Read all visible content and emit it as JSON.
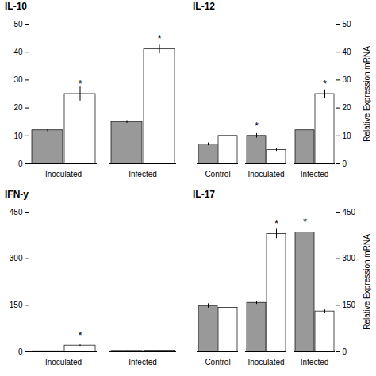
{
  "chart_data": [
    {
      "type": "bar",
      "title": "IL-10",
      "categories": [
        "Inoculated",
        "Infected"
      ],
      "series": [
        {
          "color": "#999999",
          "values": [
            12,
            15
          ],
          "errors": [
            0.5,
            0.5
          ]
        },
        {
          "color": "#ffffff",
          "values": [
            25,
            41
          ],
          "errors": [
            2.5,
            1.5
          ]
        }
      ],
      "ylim": [
        0,
        50
      ],
      "yticks": [
        0,
        10,
        20,
        30,
        40,
        50
      ],
      "grid": false,
      "annotations": [
        {
          "text": "*",
          "category": "Inoculated",
          "series": 1,
          "y": 25
        },
        {
          "text": "*",
          "category": "Infected",
          "series": 1,
          "y": 41
        }
      ]
    },
    {
      "type": "bar",
      "title": "IL-12",
      "categories": [
        "Control",
        "Inoculated",
        "Infected"
      ],
      "series": [
        {
          "color": "#999999",
          "values": [
            7,
            10,
            12
          ],
          "errors": [
            0.5,
            0.8,
            0.8
          ]
        },
        {
          "color": "#ffffff",
          "values": [
            10,
            5,
            25
          ],
          "errors": [
            0.8,
            0.5,
            1.5
          ]
        }
      ],
      "ylabel": "Relative Expression mRNA",
      "ylim": [
        0,
        50
      ],
      "yticks": [
        0,
        10,
        20,
        30,
        40,
        50
      ],
      "grid": false,
      "annotations": [
        {
          "text": "*",
          "category": "Inoculated",
          "series": 0,
          "y": 10
        },
        {
          "text": "*",
          "category": "Infected",
          "series": 1,
          "y": 25
        }
      ]
    },
    {
      "type": "bar",
      "title": "IFN-y",
      "categories": [
        "Inoculated",
        "Infected"
      ],
      "series": [
        {
          "color": "#999999",
          "values": [
            2,
            3
          ],
          "errors": [
            0.3,
            0.3
          ]
        },
        {
          "color": "#ffffff",
          "values": [
            20,
            4
          ],
          "errors": [
            2.5,
            0.5
          ]
        }
      ],
      "ylim": [
        0,
        450
      ],
      "yticks": [
        0,
        150,
        300,
        450
      ],
      "grid": false,
      "annotations": [
        {
          "text": "*",
          "category": "Inoculated",
          "series": 1,
          "y": 20
        }
      ]
    },
    {
      "type": "bar",
      "title": "IL-17",
      "categories": [
        "Control",
        "Inoculated",
        "Infected"
      ],
      "series": [
        {
          "color": "#999999",
          "values": [
            148,
            158,
            385
          ],
          "errors": [
            7,
            5,
            15
          ]
        },
        {
          "color": "#ffffff",
          "values": [
            142,
            380,
            130
          ],
          "errors": [
            5,
            15,
            5
          ]
        }
      ],
      "ylabel": "Relative Expression mRNA",
      "ylim": [
        0,
        450
      ],
      "yticks": [
        0,
        150,
        300,
        450
      ],
      "grid": false,
      "annotations": [
        {
          "text": "*",
          "category": "Inoculated",
          "series": 1,
          "y": 380
        },
        {
          "text": "*",
          "category": "Infected",
          "series": 0,
          "y": 385
        }
      ]
    }
  ]
}
